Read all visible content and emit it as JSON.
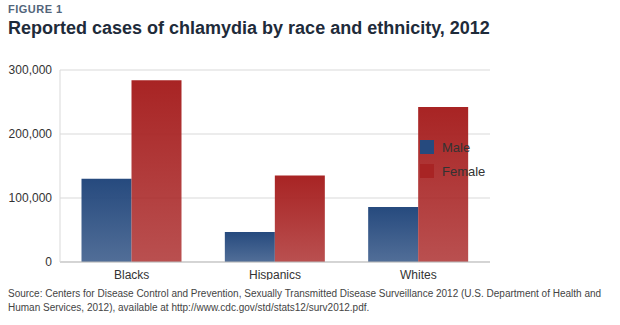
{
  "chart_data": {
    "type": "bar",
    "title": "Reported cases of chlamydia by race and ethnicity, 2012",
    "annotations": [
      "FIGURE 1",
      "Source: Centers for Disease Control and Prevention, Sexually Transmitted Disease Surveillance 2012 (U.S. Department of Health and Human Services, 2012), available at http://www.cdc.gov/std/stats12/surv2012.pdf."
    ],
    "categories": [
      "Blacks",
      "Hispanics",
      "Whites"
    ],
    "series": [
      {
        "name": "Male",
        "color": "#264a7e",
        "values": [
          130000,
          47000,
          86000
        ]
      },
      {
        "name": "Female",
        "color": "#a82424",
        "values": [
          284000,
          135000,
          242000
        ]
      }
    ],
    "ylim": [
      0,
      300000
    ],
    "yticks": [
      0,
      {
        "value": 100000,
        "label": "100,000"
      },
      {
        "value": 200000,
        "label": "200,000"
      },
      {
        "value": 300000,
        "label": "300,000"
      }
    ],
    "grid": true,
    "legend": "top-right"
  }
}
